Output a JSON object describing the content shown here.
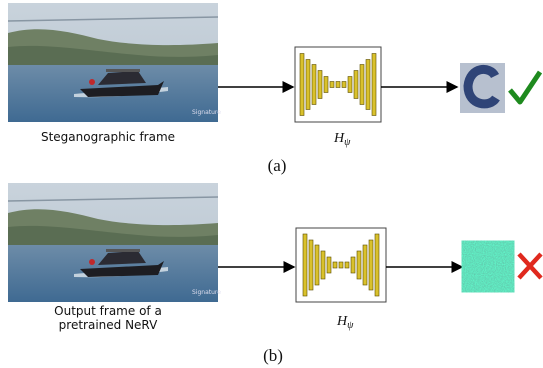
{
  "panels": [
    {
      "caption": [
        "Steganographic frame"
      ],
      "decoder_label": {
        "base": "H",
        "sub": "ψ"
      },
      "label": "(a)"
    },
    {
      "caption": [
        "Output frame of a",
        "pretrained NeRV"
      ],
      "decoder_label": {
        "base": "H",
        "sub": "ψ"
      },
      "label": "(b)"
    }
  ]
}
